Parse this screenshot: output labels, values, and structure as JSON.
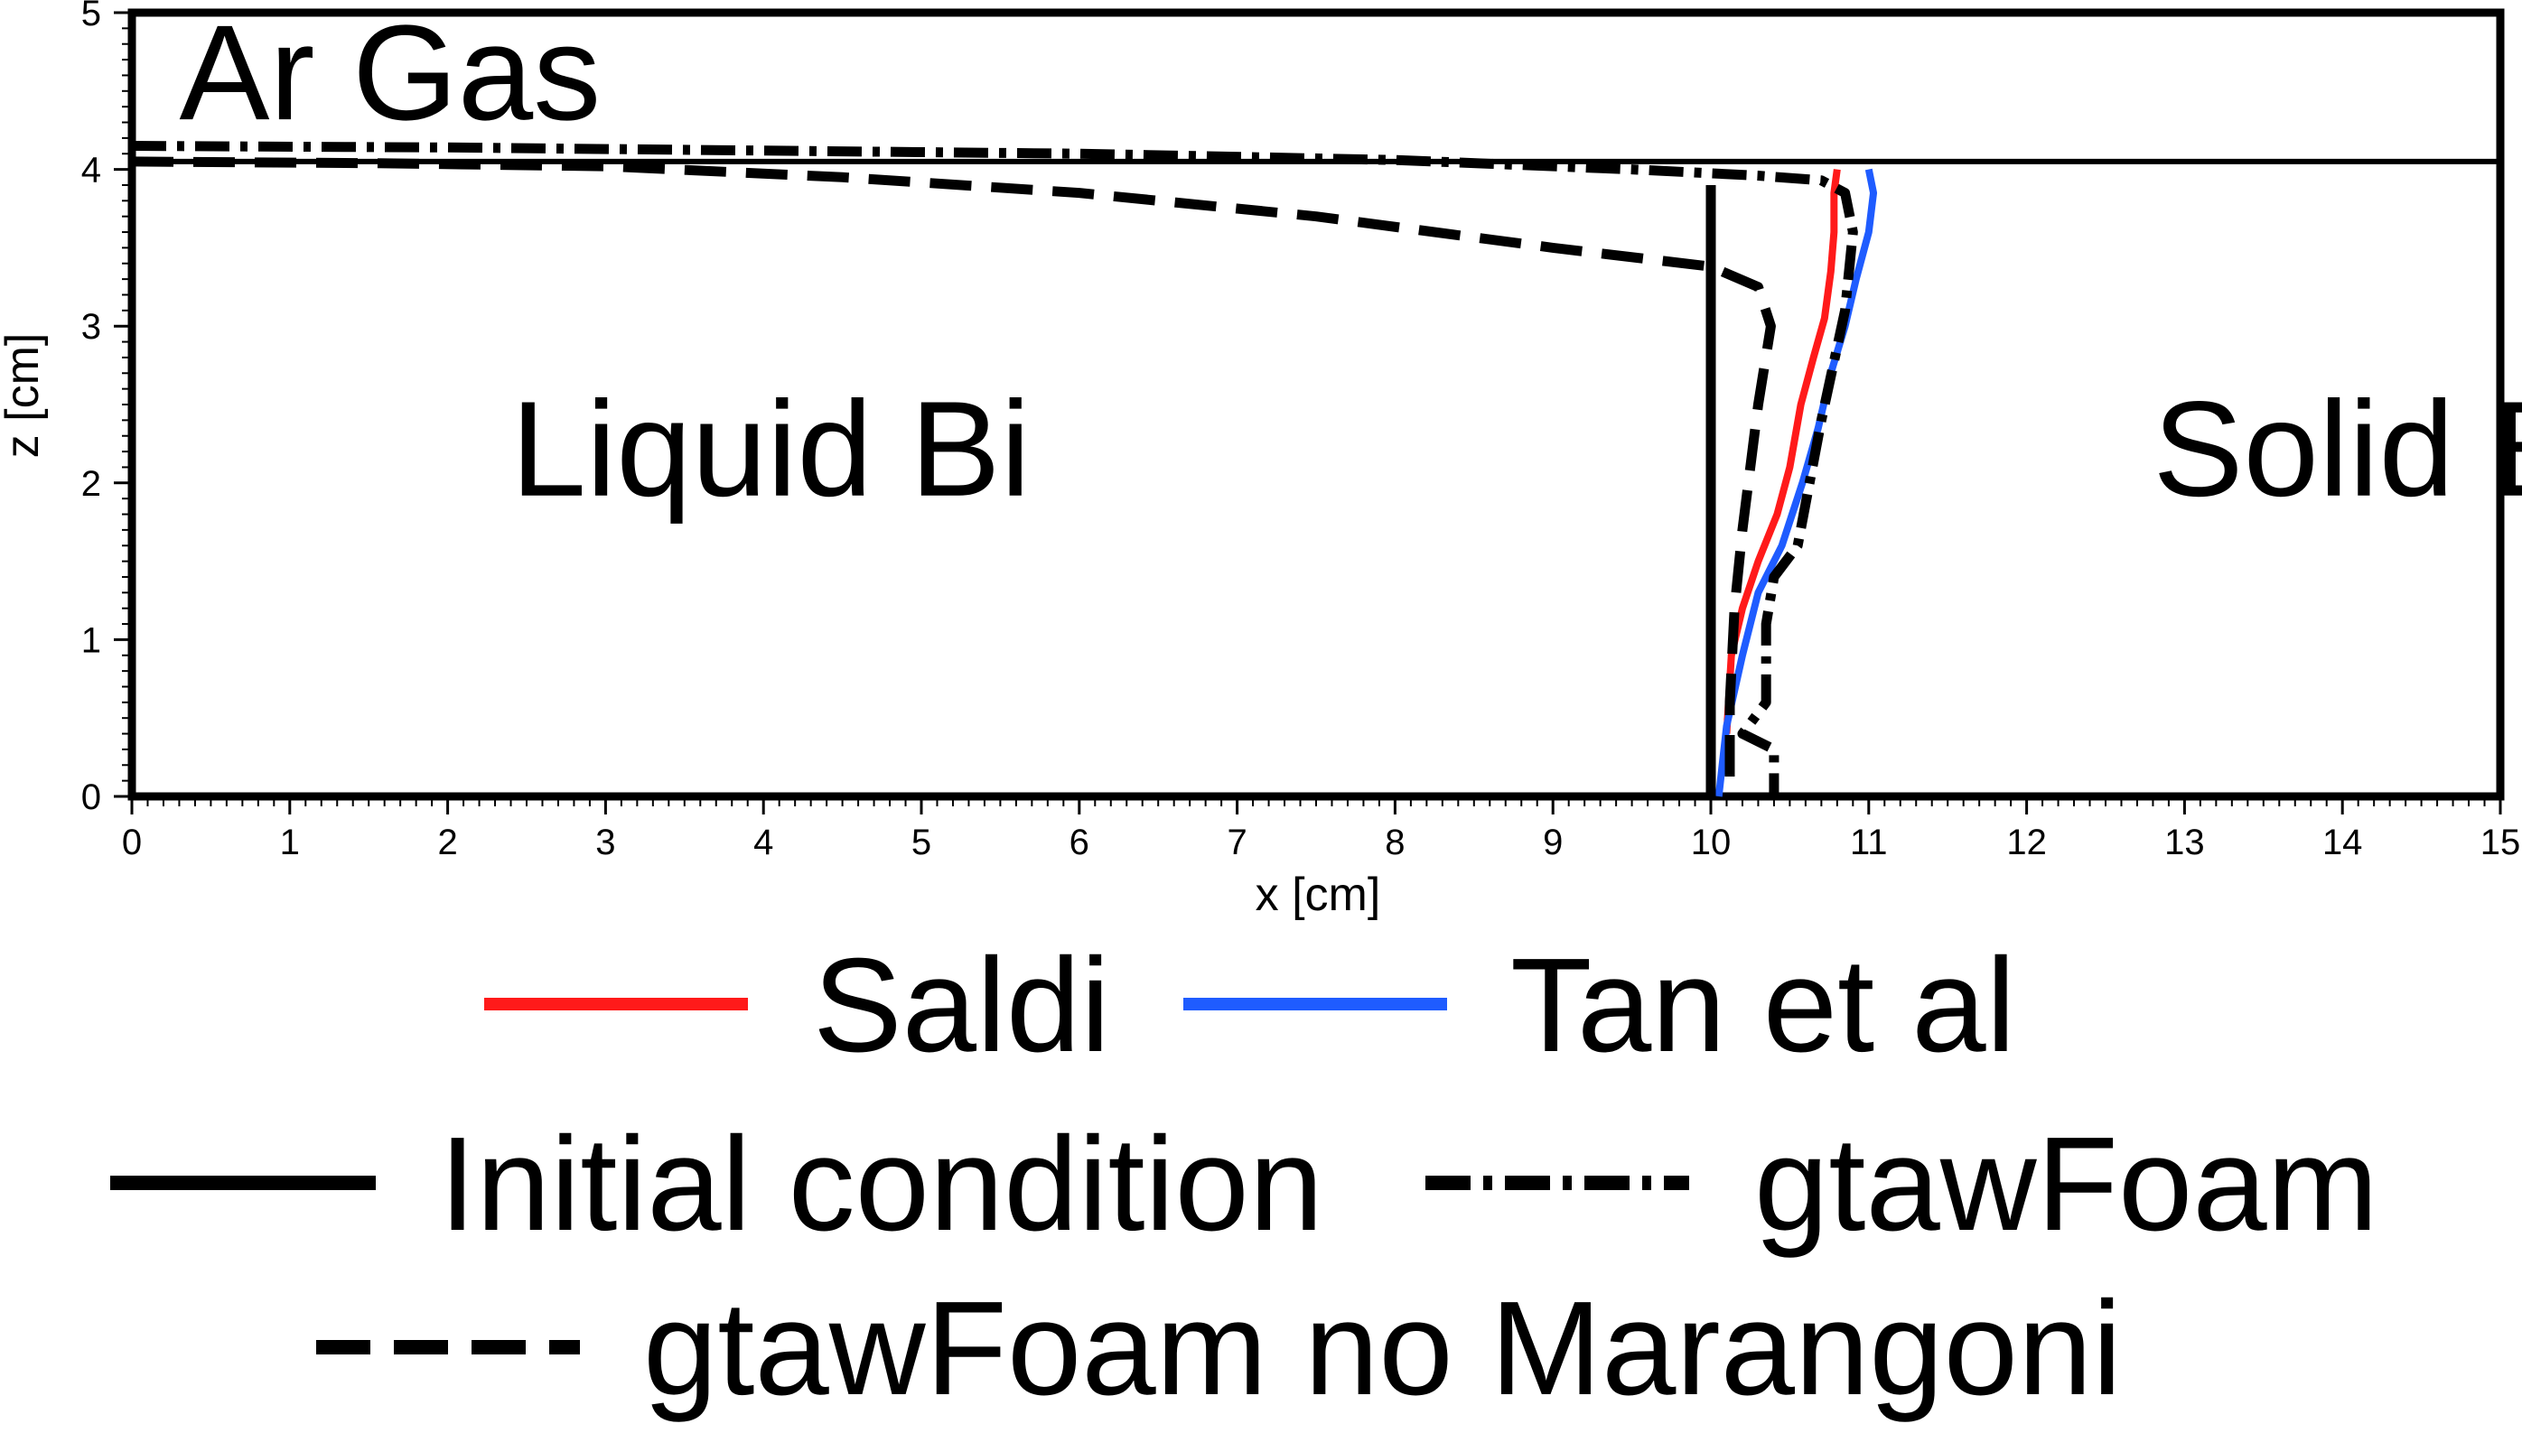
{
  "chart_data": {
    "type": "line",
    "title": "",
    "xlabel": "x [cm]",
    "ylabel": "z [cm]",
    "xlim": [
      0,
      15
    ],
    "ylim": [
      0,
      5
    ],
    "xticks": [
      "0",
      "1",
      "2",
      "3",
      "4",
      "5",
      "6",
      "7",
      "8",
      "9",
      "10",
      "11",
      "12",
      "13",
      "14",
      "15"
    ],
    "yticks": [
      "0",
      "1",
      "2",
      "3",
      "4",
      "5"
    ],
    "grid": false,
    "legend_position": "bottom",
    "annotations": [
      {
        "text": "Ar Gas",
        "x": 0.3,
        "y": 4.55
      },
      {
        "text": "Liquid Bi",
        "x": 2.4,
        "y": 2.15
      },
      {
        "text": "Solid Bi",
        "x": 12.8,
        "y": 2.15
      }
    ],
    "interface_line": {
      "y": 4.05,
      "x": [
        0,
        15
      ]
    },
    "series": [
      {
        "name": "Saldi",
        "color": "#ff1a1a",
        "style": "solid",
        "x": [
          10.1,
          10.13,
          10.2,
          10.3,
          10.42,
          10.5,
          10.57,
          10.65,
          10.72,
          10.76,
          10.78,
          10.78,
          10.8
        ],
        "y": [
          0.4,
          0.9,
          1.2,
          1.5,
          1.8,
          2.1,
          2.5,
          2.8,
          3.05,
          3.35,
          3.6,
          3.85,
          4.0
        ]
      },
      {
        "name": "Tan et al",
        "color": "#1f5cff",
        "style": "solid",
        "x": [
          10.05,
          10.1,
          10.2,
          10.3,
          10.45,
          10.58,
          10.68,
          10.76,
          10.85,
          10.92,
          11.0,
          11.03,
          11.0
        ],
        "y": [
          0.0,
          0.45,
          0.9,
          1.3,
          1.6,
          2.0,
          2.35,
          2.7,
          3.0,
          3.3,
          3.6,
          3.85,
          4.0
        ]
      },
      {
        "name": "Initial condition",
        "color": "#000000",
        "style": "solid",
        "x": [
          10.0,
          10.0
        ],
        "y": [
          0.0,
          3.9
        ]
      },
      {
        "name": "gtawFoam",
        "color": "#000000",
        "style": "dashdot",
        "x": [
          0.0,
          2.0,
          4.0,
          6.0,
          8.0,
          9.5,
          10.3,
          10.7,
          10.85,
          10.9,
          10.85,
          10.7,
          10.55,
          10.4,
          10.35,
          10.35,
          10.2,
          10.4,
          10.4
        ],
        "y": [
          4.15,
          4.14,
          4.12,
          4.1,
          4.06,
          4.0,
          3.96,
          3.93,
          3.85,
          3.6,
          3.1,
          2.4,
          1.6,
          1.4,
          1.1,
          0.6,
          0.4,
          0.3,
          0.0
        ]
      },
      {
        "name": "gtawFoam no Marangoni",
        "color": "#000000",
        "style": "dashed",
        "x": [
          0.0,
          1.5,
          3.0,
          4.5,
          6.0,
          7.5,
          9.0,
          10.0,
          10.3,
          10.38,
          10.3,
          10.2,
          10.15,
          10.12,
          10.12
        ],
        "y": [
          4.05,
          4.04,
          4.02,
          3.95,
          3.85,
          3.7,
          3.5,
          3.38,
          3.25,
          3.0,
          2.5,
          1.7,
          1.2,
          0.6,
          0.0
        ]
      }
    ]
  }
}
